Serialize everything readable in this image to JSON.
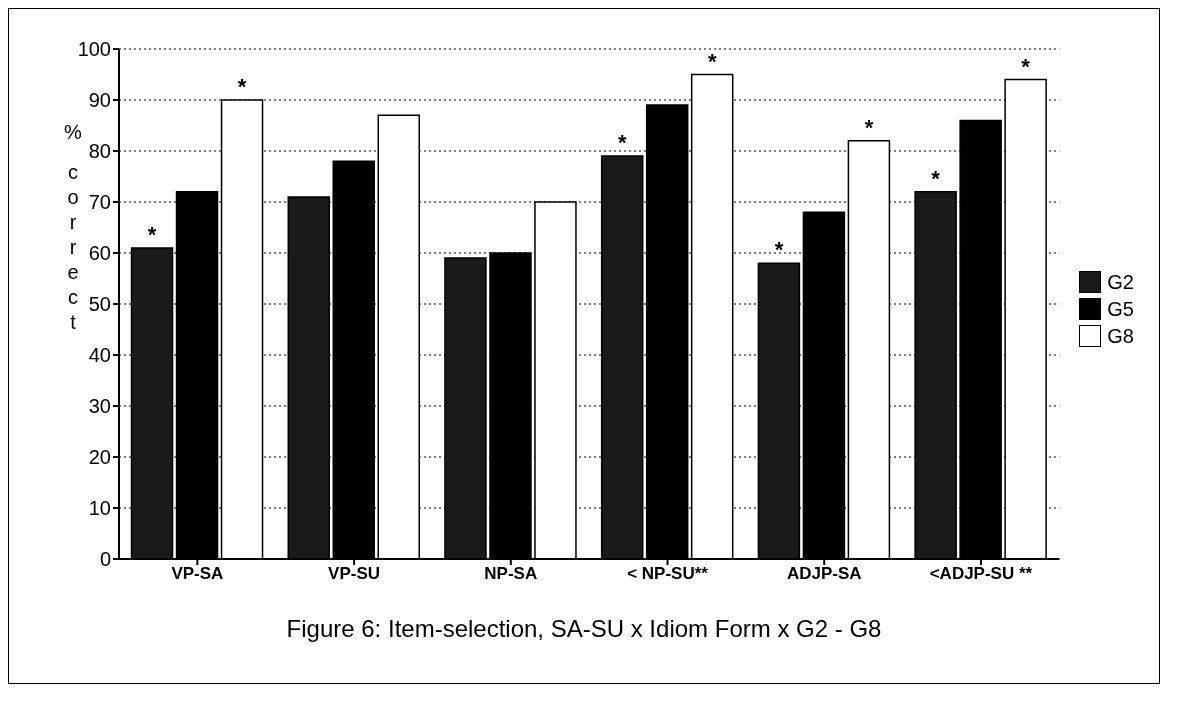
{
  "chart_data": {
    "type": "bar",
    "title": "Figure 6: Item-selection, SA-SU x Idiom Form x G2 - G8",
    "ylabel": "% correct",
    "categories": [
      "VP-SA",
      "VP-SU",
      "NP-SA",
      "< NP-SU**",
      "ADJP-SA",
      "<ADJP-SU **"
    ],
    "series": [
      {
        "name": "G2",
        "color": "#1a1a1a",
        "values": [
          61,
          71,
          59,
          79,
          58,
          72
        ],
        "value_labels": [
          "*",
          null,
          null,
          "*",
          "*",
          "*"
        ]
      },
      {
        "name": "G5",
        "color": "#000000",
        "values": [
          72,
          78,
          60,
          89,
          68,
          86
        ],
        "value_labels": [
          null,
          null,
          null,
          null,
          null,
          null
        ]
      },
      {
        "name": "G8",
        "color": "#ffffff",
        "values": [
          90,
          87,
          70,
          95,
          82,
          94
        ],
        "value_labels": [
          "*",
          null,
          null,
          "*",
          "*",
          "*"
        ]
      }
    ],
    "ylim": [
      0,
      100
    ],
    "yticks": [
      0,
      10,
      20,
      30,
      40,
      50,
      60,
      70,
      80,
      90,
      100
    ],
    "grid": "y",
    "legend": "right"
  }
}
